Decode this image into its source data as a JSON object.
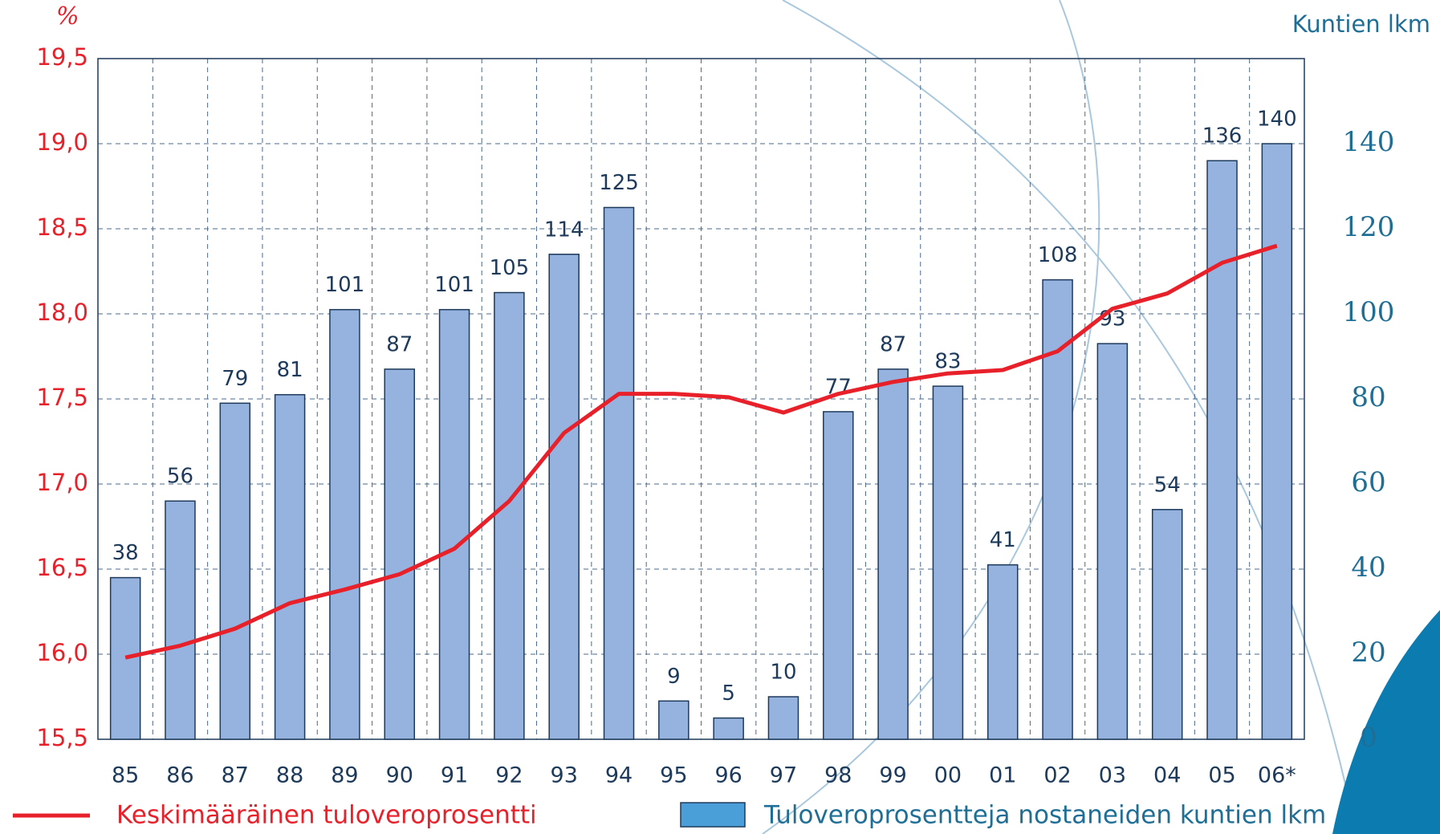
{
  "chart_data": {
    "type": "combo",
    "y_label": "%",
    "y2_label": "Kuntien lkm",
    "categories": [
      "85",
      "86",
      "87",
      "88",
      "89",
      "90",
      "91",
      "92",
      "93",
      "94",
      "95",
      "96",
      "97",
      "98",
      "99",
      "00",
      "01",
      "02",
      "03",
      "04",
      "05",
      "06*"
    ],
    "series": [
      {
        "name": "Tuloveroprosentteja nostaneiden kuntien lkm",
        "type": "bar",
        "axis": "y2",
        "color": "#95b3de",
        "legend_color": "#4a9fd8",
        "values": [
          38,
          56,
          79,
          81,
          101,
          87,
          101,
          105,
          114,
          125,
          9,
          5,
          10,
          77,
          87,
          83,
          41,
          108,
          93,
          54,
          136,
          140
        ]
      },
      {
        "name": "Keskimääräinen tuloveroprosentti",
        "type": "line",
        "color": "#e8202a",
        "values": [
          15.98,
          16.05,
          16.15,
          16.3,
          16.38,
          16.47,
          16.62,
          16.9,
          17.3,
          17.53,
          17.53,
          17.51,
          17.42,
          17.53,
          17.6,
          17.65,
          17.67,
          17.78,
          18.03,
          18.12,
          18.3,
          18.4
        ]
      }
    ],
    "ylim": [
      15.5,
      19.5
    ],
    "yticks": [
      {
        "value": 15.5,
        "label": "15,5"
      },
      {
        "value": 16,
        "label": "16,0"
      },
      {
        "value": 16.5,
        "label": "16,5"
      },
      {
        "value": 17,
        "label": "17,0"
      },
      {
        "value": 17.5,
        "label": "17,5"
      },
      {
        "value": 18,
        "label": "18,0"
      },
      {
        "value": 18.5,
        "label": "18,5"
      },
      {
        "value": 19,
        "label": "19,0"
      },
      {
        "value": 19.5,
        "label": "19,5"
      }
    ],
    "y2lim": [
      0,
      160
    ],
    "y2ticks": [
      0,
      20,
      40,
      60,
      80,
      100,
      120,
      140
    ],
    "grid": true
  }
}
